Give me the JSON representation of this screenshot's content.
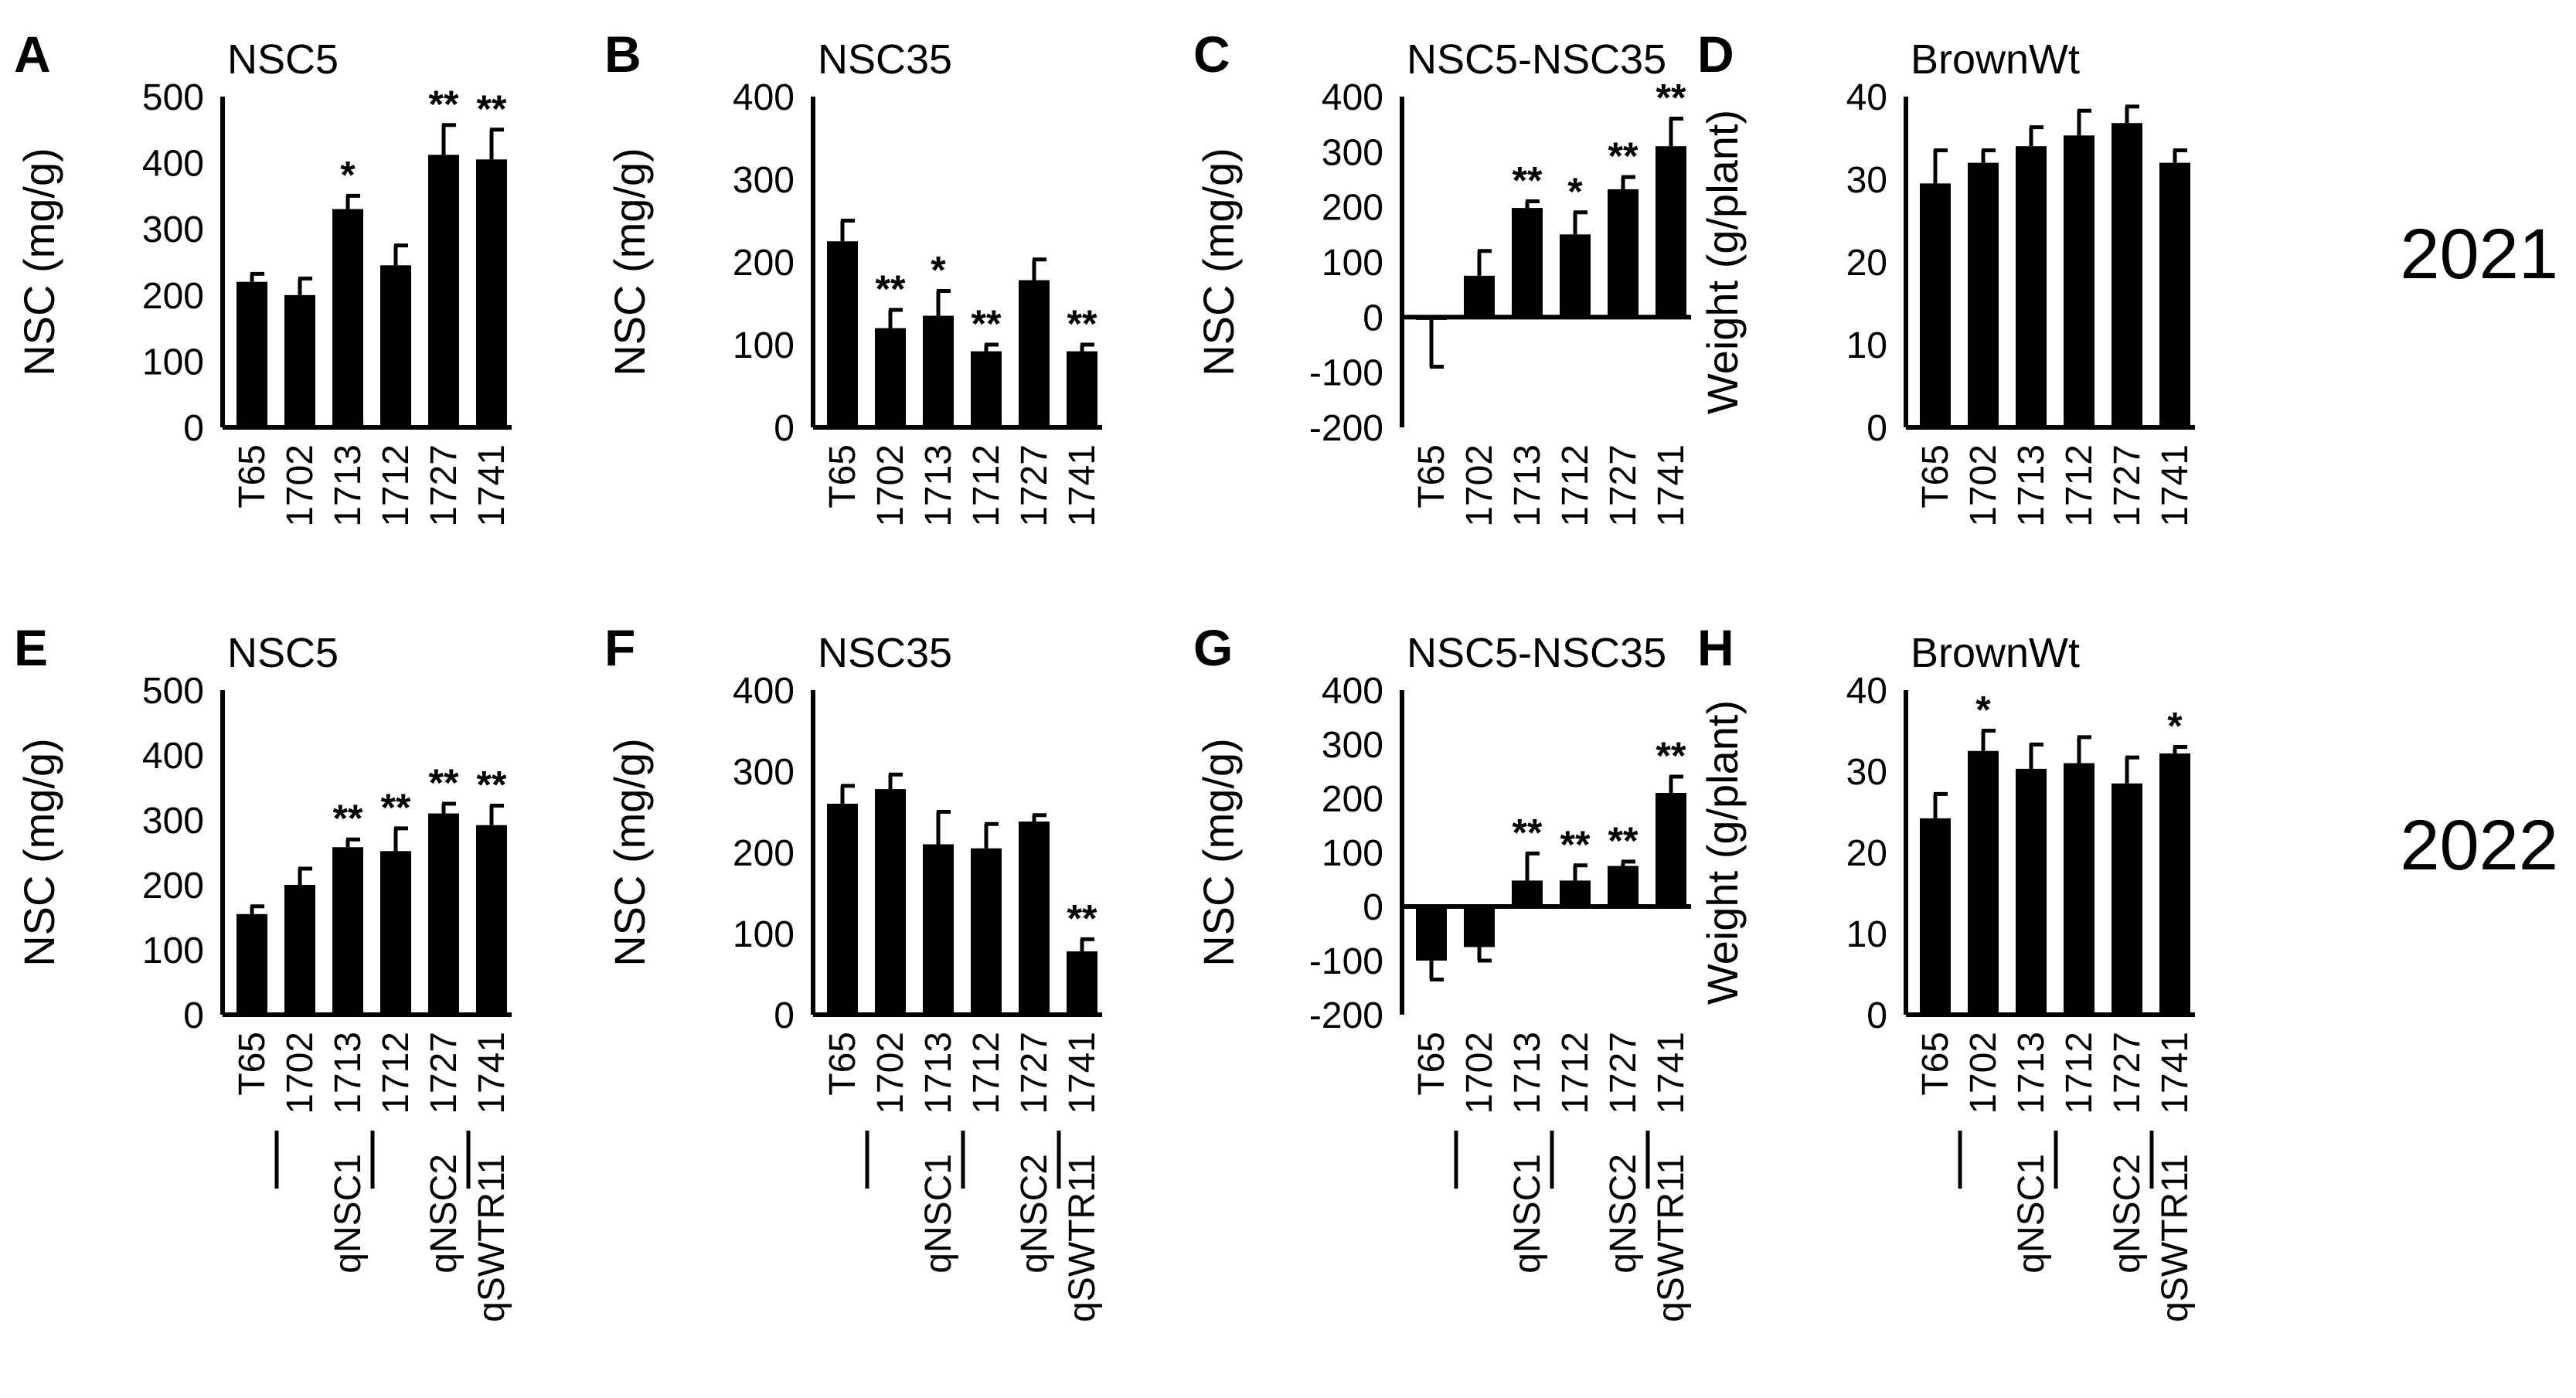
{
  "years": [
    "2021",
    "2022"
  ],
  "chart_data": [
    {
      "id": "A",
      "type": "bar",
      "title": "NSC5",
      "ylabel": "NSC (mg/g)",
      "ylim": [
        0,
        500
      ],
      "yticks": [
        0,
        100,
        200,
        300,
        400,
        500
      ],
      "categories": [
        "T65",
        "1702",
        "1713",
        "1712",
        "1727",
        "1741"
      ],
      "values": [
        220,
        200,
        330,
        245,
        412,
        405
      ],
      "errors": [
        12,
        25,
        20,
        30,
        45,
        45
      ],
      "significance": [
        "",
        "",
        "*",
        "",
        "**",
        "**"
      ],
      "groups": []
    },
    {
      "id": "B",
      "type": "bar",
      "title": "NSC35",
      "ylabel": "NSC (mg/g)",
      "ylim": [
        0,
        400
      ],
      "yticks": [
        0,
        100,
        200,
        300,
        400
      ],
      "categories": [
        "T65",
        "1702",
        "1713",
        "1712",
        "1727",
        "1741"
      ],
      "values": [
        225,
        120,
        135,
        92,
        178,
        92
      ],
      "errors": [
        25,
        22,
        30,
        8,
        25,
        8
      ],
      "significance": [
        "",
        "**",
        "*",
        "**",
        "",
        "**"
      ],
      "groups": []
    },
    {
      "id": "C",
      "type": "bar",
      "title": "NSC5-NSC35",
      "ylabel": "NSC (mg/g)",
      "ylim": [
        -200,
        400
      ],
      "yticks": [
        -200,
        -100,
        0,
        100,
        200,
        300,
        400
      ],
      "categories": [
        "T65",
        "1702",
        "1713",
        "1712",
        "1727",
        "1741"
      ],
      "values": [
        -5,
        75,
        198,
        150,
        232,
        310
      ],
      "errors": [
        85,
        45,
        12,
        40,
        22,
        50
      ],
      "significance": [
        "",
        "",
        "**",
        "*",
        "**",
        "**"
      ],
      "groups": []
    },
    {
      "id": "D",
      "type": "bar",
      "title": "BrownWt",
      "ylabel": "Weight (g/plant)",
      "ylim": [
        0,
        40
      ],
      "yticks": [
        0,
        10,
        20,
        30,
        40
      ],
      "categories": [
        "T65",
        "1702",
        "1713",
        "1712",
        "1727",
        "1741"
      ],
      "values": [
        29.5,
        32,
        34,
        35.3,
        36.8,
        32
      ],
      "errors": [
        4,
        1.5,
        2.3,
        3,
        2,
        1.5
      ],
      "significance": [
        "",
        "",
        "",
        "",
        "",
        ""
      ],
      "groups": []
    },
    {
      "id": "E",
      "type": "bar",
      "title": "NSC5",
      "ylabel": "NSC (mg/g)",
      "ylim": [
        0,
        500
      ],
      "yticks": [
        0,
        100,
        200,
        300,
        400,
        500
      ],
      "categories": [
        "T65",
        "1702",
        "1713",
        "1712",
        "1727",
        "1741"
      ],
      "values": [
        155,
        200,
        258,
        252,
        310,
        292
      ],
      "errors": [
        12,
        25,
        12,
        35,
        15,
        30
      ],
      "significance": [
        "",
        "",
        "**",
        "**",
        "**",
        "**"
      ],
      "groups": [
        {
          "label": "qNSC1",
          "from": 1,
          "to": 2
        },
        {
          "label": "qNSC2",
          "from": 3,
          "to": 4
        },
        {
          "label": "qSWTR11",
          "from": 5,
          "to": 5
        }
      ]
    },
    {
      "id": "F",
      "type": "bar",
      "title": "NSC35",
      "ylabel": "NSC (mg/g)",
      "ylim": [
        0,
        400
      ],
      "yticks": [
        0,
        100,
        200,
        300,
        400
      ],
      "categories": [
        "T65",
        "1702",
        "1713",
        "1712",
        "1727",
        "1741"
      ],
      "values": [
        260,
        278,
        210,
        205,
        238,
        78
      ],
      "errors": [
        22,
        18,
        40,
        30,
        8,
        15
      ],
      "significance": [
        "",
        "",
        "",
        "",
        "",
        "**"
      ],
      "groups": [
        {
          "label": "qNSC1",
          "from": 1,
          "to": 2
        },
        {
          "label": "qNSC2",
          "from": 3,
          "to": 4
        },
        {
          "label": "qSWTR11",
          "from": 5,
          "to": 5
        }
      ]
    },
    {
      "id": "G",
      "type": "bar",
      "title": "NSC5-NSC35",
      "ylabel": "NSC (mg/g)",
      "ylim": [
        -200,
        400
      ],
      "yticks": [
        -200,
        -100,
        0,
        100,
        200,
        300,
        400
      ],
      "categories": [
        "T65",
        "1702",
        "1713",
        "1712",
        "1727",
        "1741"
      ],
      "values": [
        -100,
        -75,
        48,
        48,
        75,
        210
      ],
      "errors": [
        35,
        25,
        50,
        28,
        8,
        30
      ],
      "significance": [
        "",
        "",
        "**",
        "**",
        "**",
        "**"
      ],
      "groups": [
        {
          "label": "qNSC1",
          "from": 1,
          "to": 2
        },
        {
          "label": "qNSC2",
          "from": 3,
          "to": 4
        },
        {
          "label": "qSWTR11",
          "from": 5,
          "to": 5
        }
      ]
    },
    {
      "id": "H",
      "type": "bar",
      "title": "BrownWt",
      "ylabel": "Weight (g/plant)",
      "ylim": [
        0,
        40
      ],
      "yticks": [
        0,
        10,
        20,
        30,
        40
      ],
      "categories": [
        "T65",
        "1702",
        "1713",
        "1712",
        "1727",
        "1741"
      ],
      "values": [
        24.2,
        32.5,
        30.3,
        31,
        28.5,
        32.2
      ],
      "errors": [
        3,
        2.5,
        3,
        3.2,
        3.2,
        0.8
      ],
      "significance": [
        "",
        "*",
        "",
        "",
        "",
        "*"
      ],
      "groups": [
        {
          "label": "qNSC1",
          "from": 1,
          "to": 2
        },
        {
          "label": "qNSC2",
          "from": 3,
          "to": 4
        },
        {
          "label": "qSWTR11",
          "from": 5,
          "to": 5
        }
      ]
    }
  ]
}
